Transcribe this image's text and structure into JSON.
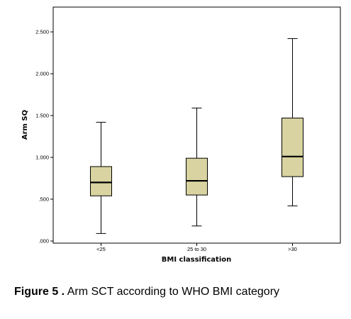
{
  "chart_data": {
    "type": "boxplot",
    "xlabel": "BMI classification",
    "ylabel": "Arm SQ",
    "ylim": [
      0,
      2.7
    ],
    "yticks": [
      0,
      0.5,
      1.0,
      1.5,
      2.0,
      2.5
    ],
    "ytick_labels": [
      ".000",
      ".500",
      "1.000",
      "1.500",
      "2.000",
      "2.500"
    ],
    "grid": false,
    "box_color": "#d8d3a0",
    "categories": [
      "<25",
      "25 to 30",
      ">30"
    ],
    "boxes": [
      {
        "category": "<25",
        "min": 0.09,
        "q1": 0.54,
        "median": 0.7,
        "q3": 0.89,
        "max": 1.42
      },
      {
        "category": "25 to 30",
        "min": 0.18,
        "q1": 0.55,
        "median": 0.72,
        "q3": 0.99,
        "max": 1.59
      },
      {
        "category": ">30",
        "min": 0.42,
        "q1": 0.77,
        "median": 1.01,
        "q3": 1.47,
        "max": 2.42
      }
    ]
  },
  "caption": {
    "label": "Figure 5 .",
    "text": " Arm SCT according to WHO BMI category"
  }
}
